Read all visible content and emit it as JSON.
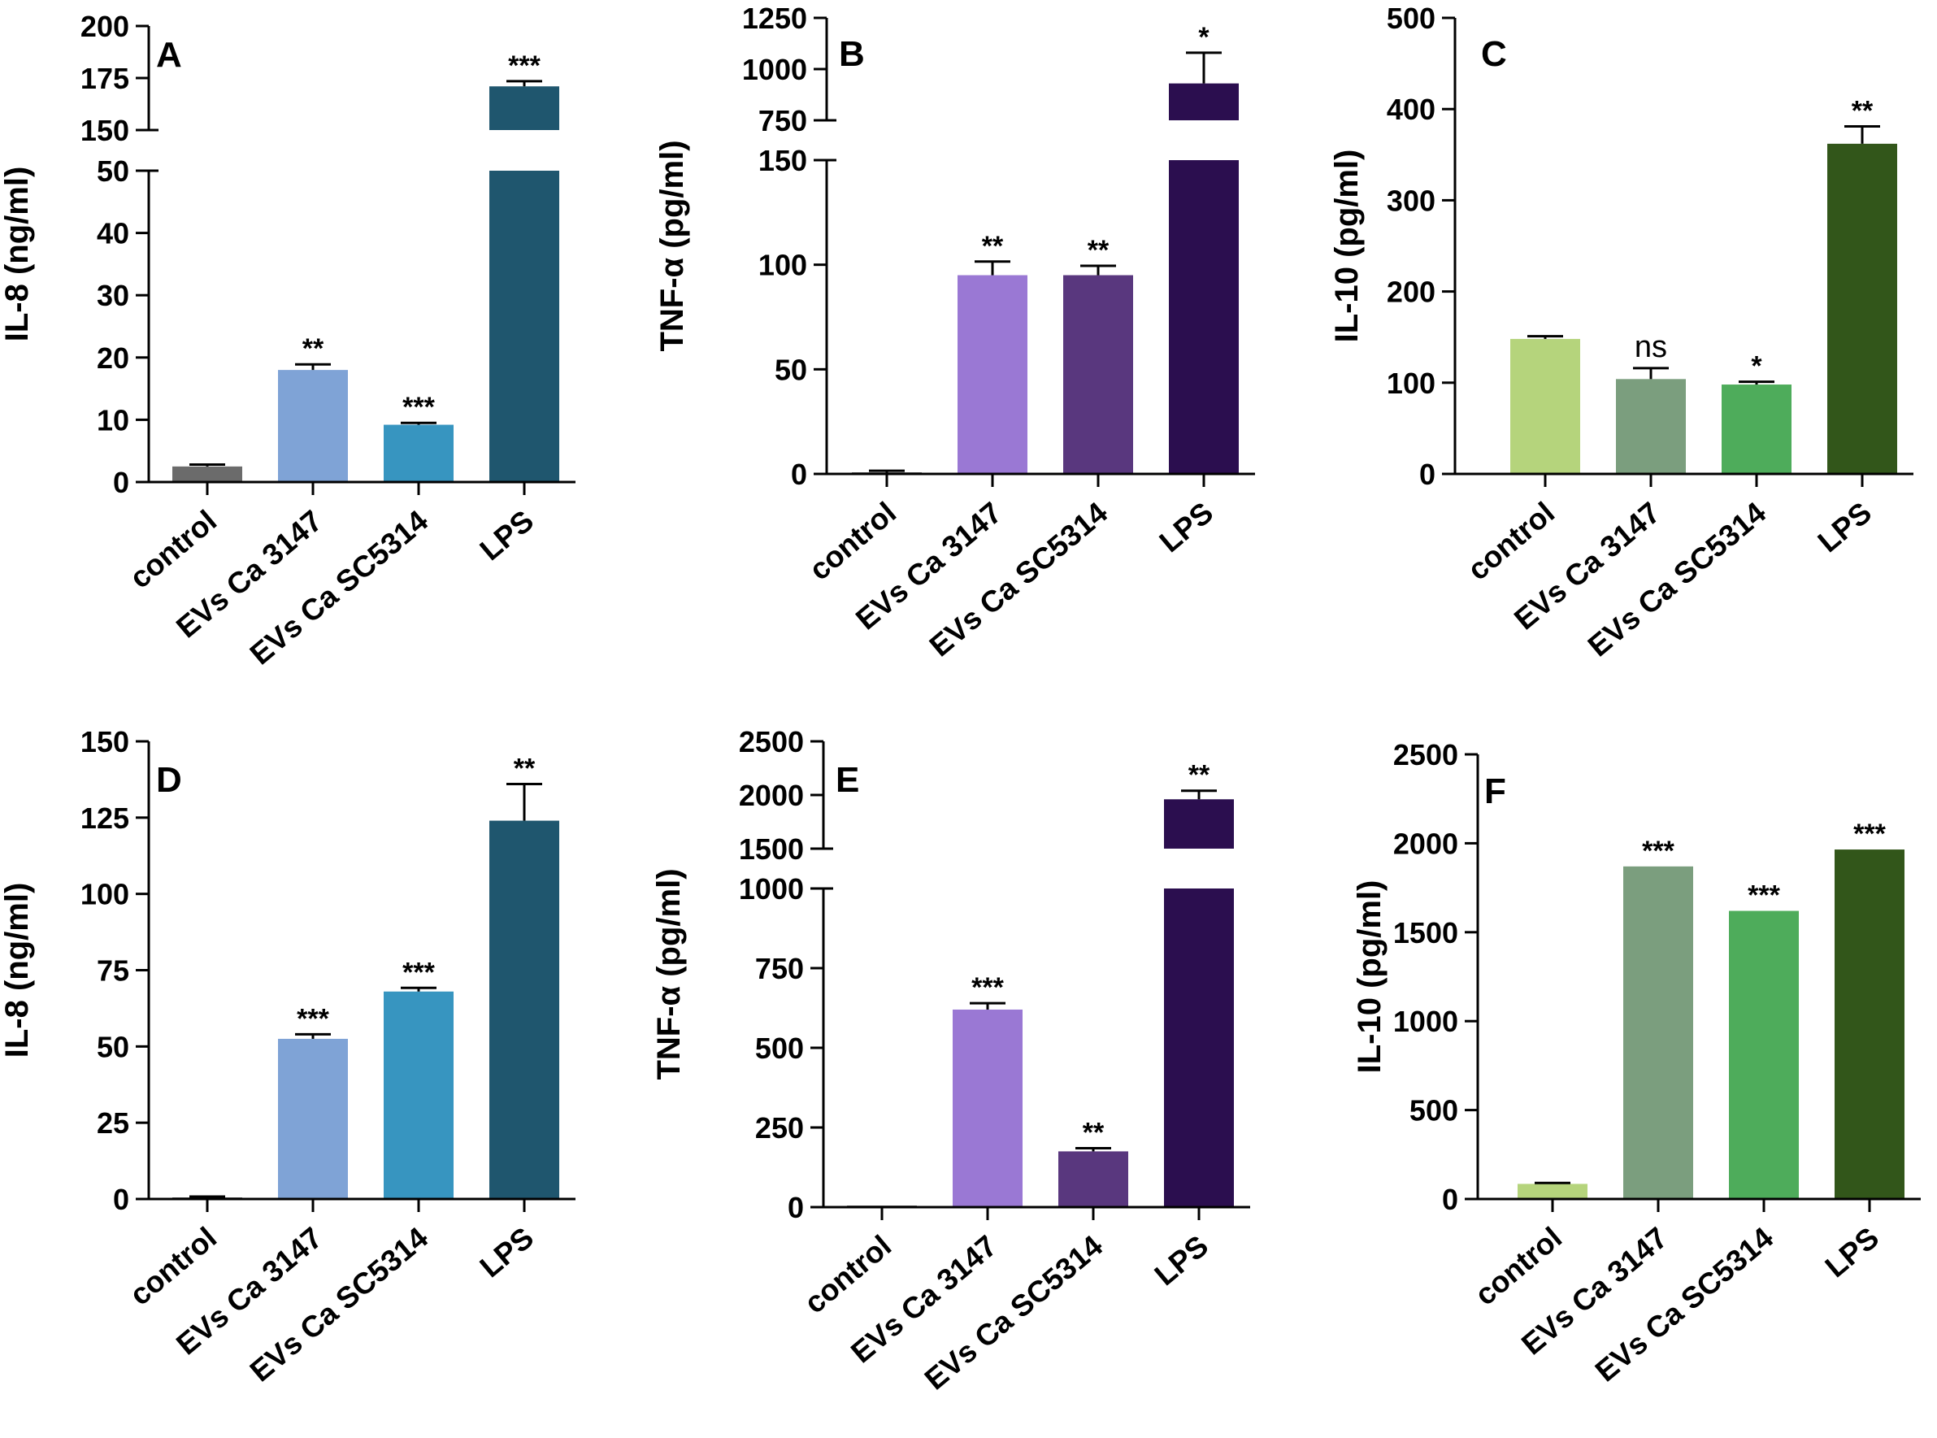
{
  "chart_data": [
    {
      "panel": "A",
      "type": "bar",
      "ylabel": "IL-8 (ng/ml)",
      "categories": [
        "control",
        "EVs Ca 3147",
        "EVs Ca SC5314",
        "LPS"
      ],
      "values": [
        2.5,
        18,
        9.2,
        171
      ],
      "errors": [
        0.3,
        0.9,
        0.3,
        2.5
      ],
      "significance": [
        "",
        "**",
        "***",
        "***"
      ],
      "colors": [
        "#6b6b6b",
        "#7fa3d6",
        "#3795c0",
        "#1f566e"
      ],
      "axis_break": {
        "lower": [
          0,
          50
        ],
        "upper": [
          150,
          200
        ]
      },
      "yticks_lower": [
        0,
        10,
        20,
        30,
        40,
        50
      ],
      "yticks_upper": [
        150,
        175,
        200
      ],
      "tick_labels_lower": [
        "0",
        "10",
        "20",
        "30",
        "40",
        "50"
      ],
      "tick_labels_upper": [
        "150",
        "175",
        "200"
      ]
    },
    {
      "panel": "B",
      "type": "bar",
      "ylabel": "TNF-α (pg/ml)",
      "categories": [
        "control",
        "EVs Ca 3147",
        "EVs Ca SC5314",
        "LPS"
      ],
      "values": [
        0.5,
        95,
        95,
        930
      ],
      "errors": [
        1.0,
        6.5,
        4.5,
        150
      ],
      "significance": [
        "",
        "**",
        "**",
        "*"
      ],
      "colors": [
        "#6b6b6b",
        "#9a78d4",
        "#59377e",
        "#2b0e4f"
      ],
      "axis_break": {
        "lower": [
          0,
          150
        ],
        "upper": [
          750,
          1250
        ]
      },
      "yticks_lower": [
        0,
        50,
        100,
        150
      ],
      "yticks_upper": [
        750,
        1000,
        1250
      ],
      "tick_labels_lower": [
        "0",
        "50",
        "100",
        "150"
      ],
      "tick_labels_upper": [
        "750",
        "1000",
        "1250"
      ]
    },
    {
      "panel": "C",
      "type": "bar",
      "ylabel": "IL-10 (pg/ml)",
      "categories": [
        "control",
        "EVs Ca 3147",
        "EVs Ca SC5314",
        "LPS"
      ],
      "values": [
        148,
        104,
        98,
        362
      ],
      "errors": [
        3,
        12,
        3,
        19
      ],
      "significance": [
        "",
        "ns",
        "*",
        "**"
      ],
      "colors": [
        "#b5d47c",
        "#7b9e7e",
        "#4eac5b",
        "#32561a"
      ],
      "ylim": [
        0,
        500
      ],
      "yticks": [
        0,
        100,
        200,
        300,
        400,
        500
      ],
      "tick_labels": [
        "0",
        "100",
        "200",
        "300",
        "400",
        "500"
      ]
    },
    {
      "panel": "D",
      "type": "bar",
      "ylabel": "IL-8 (ng/ml)",
      "categories": [
        "control",
        "EVs Ca 3147",
        "EVs Ca SC5314",
        "LPS"
      ],
      "values": [
        0.5,
        52.5,
        68,
        124
      ],
      "errors": [
        0.3,
        1.5,
        1.2,
        12
      ],
      "significance": [
        "",
        "***",
        "***",
        "**"
      ],
      "colors": [
        "#6b6b6b",
        "#7fa3d6",
        "#3795c0",
        "#1f566e"
      ],
      "ylim": [
        0,
        150
      ],
      "yticks": [
        0,
        25,
        50,
        75,
        100,
        125,
        150
      ],
      "tick_labels": [
        "0",
        "25",
        "50",
        "75",
        "100",
        "125",
        "150"
      ]
    },
    {
      "panel": "E",
      "type": "bar",
      "ylabel": "TNF-α (pg/ml)",
      "categories": [
        "control",
        "EVs Ca 3147",
        "EVs Ca SC5314",
        "LPS"
      ],
      "values": [
        0,
        620,
        175,
        1960
      ],
      "errors": [
        0,
        20,
        10,
        80
      ],
      "significance": [
        "",
        "***",
        "**",
        "**"
      ],
      "colors": [
        "#6b6b6b",
        "#9a78d4",
        "#59377e",
        "#2b0e4f"
      ],
      "axis_break": {
        "lower": [
          0,
          1000
        ],
        "upper": [
          1500,
          2500
        ]
      },
      "yticks_lower": [
        0,
        250,
        500,
        750,
        1000
      ],
      "yticks_upper": [
        1500,
        2000,
        2500
      ],
      "tick_labels_lower": [
        "0",
        "250",
        "500",
        "750",
        "1000"
      ],
      "tick_labels_upper": [
        "1500",
        "2000",
        "2500"
      ]
    },
    {
      "panel": "F",
      "type": "bar",
      "ylabel": "IL-10 (pg/ml)",
      "categories": [
        "control",
        "EVs Ca 3147",
        "EVs Ca SC5314",
        "LPS"
      ],
      "values": [
        85,
        1870,
        1620,
        1965
      ],
      "errors": [
        5,
        0,
        0,
        0
      ],
      "significance": [
        "",
        "***",
        "***",
        "***"
      ],
      "colors": [
        "#b5d47c",
        "#7b9e7e",
        "#4eac5b",
        "#32561a"
      ],
      "ylim": [
        0,
        2500
      ],
      "yticks": [
        0,
        500,
        1000,
        1500,
        2000,
        2500
      ],
      "tick_labels": [
        "0",
        "500",
        "1000",
        "1500",
        "2000",
        "2500"
      ]
    }
  ]
}
